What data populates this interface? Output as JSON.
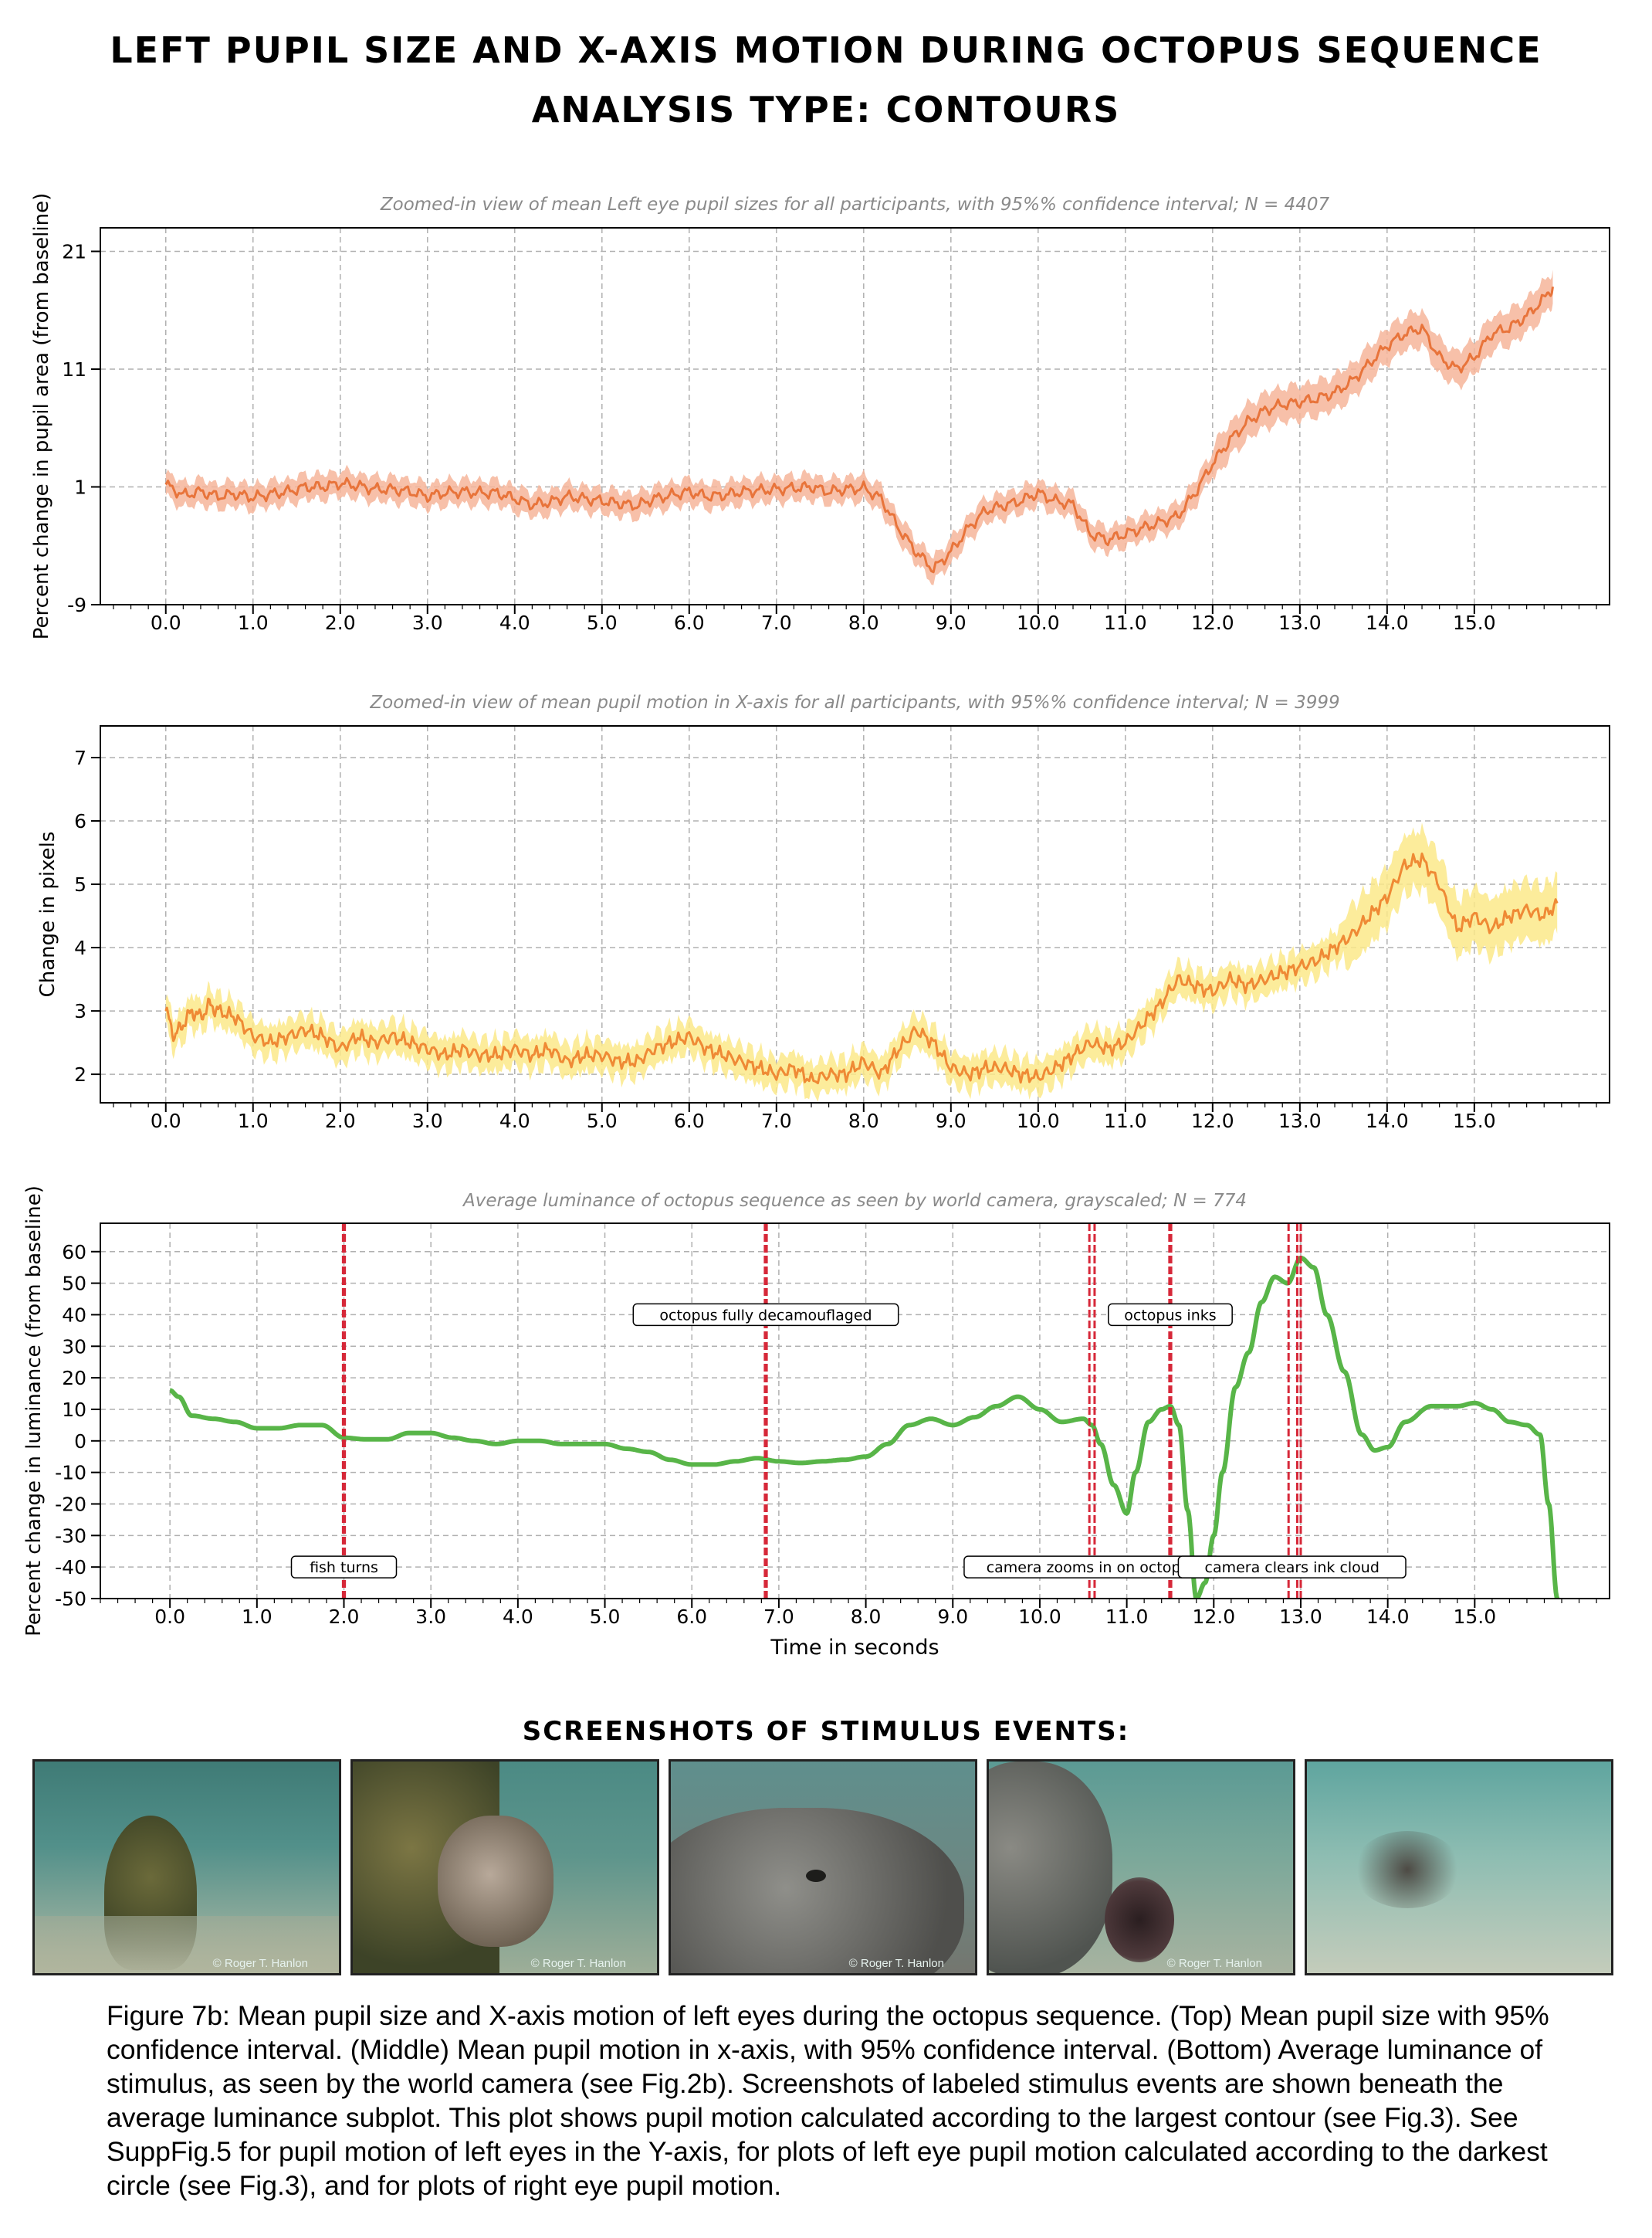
{
  "header": {
    "title": "LEFT PUPIL SIZE AND X-AXIS MOTION DURING OCTOPUS SEQUENCE",
    "subtitle": "ANALYSIS TYPE: CONTOURS"
  },
  "colors": {
    "pupil_line": "#e8743b",
    "pupil_band": "#f6b59a",
    "motion_line": "#ef8a35",
    "motion_band": "#fbe98a",
    "luminance_line": "#58b548",
    "event_line": "#d62839",
    "grid": "#b0b0b0"
  },
  "chart_data": [
    {
      "type": "line",
      "title": "Zoomed-in view of mean Left eye pupil sizes for all participants, with 95%% confidence interval; N = 4407",
      "xlabel": "",
      "ylabel": "Percent change in pupil area (from baseline)",
      "xlim": [
        -0.75,
        16.55
      ],
      "ylim": [
        -9,
        23
      ],
      "xticks": [
        "0.0",
        "1.0",
        "2.0",
        "3.0",
        "4.0",
        "5.0",
        "6.0",
        "7.0",
        "8.0",
        "9.0",
        "10.0",
        "11.0",
        "12.0",
        "13.0",
        "14.0",
        "15.0"
      ],
      "yticks": [
        "-9",
        "1",
        "11",
        "21"
      ],
      "grid": true,
      "series": [
        {
          "x": [
            0,
            0.2,
            0.4,
            0.6,
            0.8,
            1.0,
            1.2,
            1.4,
            1.6,
            1.8,
            2.0,
            2.2,
            2.4,
            2.6,
            2.8,
            3.0,
            3.2,
            3.4,
            3.6,
            3.8,
            4.0,
            4.2,
            4.4,
            4.6,
            4.8,
            5.0,
            5.2,
            5.4,
            5.6,
            5.8,
            6.0,
            6.2,
            6.4,
            6.6,
            6.8,
            7.0,
            7.2,
            7.4,
            7.6,
            7.8,
            8.0,
            8.2,
            8.4,
            8.6,
            8.8,
            9.0,
            9.2,
            9.4,
            9.6,
            9.8,
            10.0,
            10.2,
            10.4,
            10.6,
            10.8,
            11.0,
            11.2,
            11.4,
            11.6,
            11.8,
            12.0,
            12.2,
            12.4,
            12.6,
            12.8,
            13.0,
            13.2,
            13.4,
            13.6,
            13.8,
            14.0,
            14.2,
            14.4,
            14.6,
            14.8,
            15.0,
            15.2,
            15.4,
            15.6,
            15.8,
            15.9
          ],
          "values": [
            1.2,
            0.3,
            0.6,
            0.2,
            0.4,
            0.1,
            0.4,
            0.6,
            1.0,
            1.0,
            1.3,
            1.1,
            0.8,
            0.8,
            0.6,
            0.2,
            0.5,
            0.6,
            0.5,
            0.5,
            0.0,
            -0.5,
            -0.3,
            0.2,
            0.0,
            -0.2,
            -0.4,
            -0.6,
            0.0,
            0.3,
            0.6,
            0.2,
            0.3,
            0.6,
            0.7,
            0.8,
            0.9,
            1.0,
            0.6,
            0.8,
            0.9,
            0.0,
            -2.5,
            -4.5,
            -6.0,
            -4.5,
            -2.5,
            -1.0,
            -0.6,
            -0.2,
            0.5,
            -0.2,
            -0.5,
            -3.0,
            -3.5,
            -3.0,
            -2.5,
            -2.0,
            -1.5,
            0.5,
            3.0,
            5.0,
            6.5,
            7.5,
            8.0,
            8.2,
            8.5,
            9.0,
            10.0,
            11.5,
            13.0,
            14.0,
            14.5,
            12.0,
            11.0,
            12.0,
            14.0,
            14.5,
            15.5,
            17.0,
            18.0
          ],
          "ci_halfwidth": 0.9
        }
      ]
    },
    {
      "type": "line",
      "title": "Zoomed-in view of mean pupil motion in X-axis for all participants, with 95%% confidence interval; N = 3999",
      "xlabel": "",
      "ylabel": "Change in pixels",
      "xlim": [
        -0.75,
        16.55
      ],
      "ylim": [
        1.55,
        7.5
      ],
      "xticks": [
        "0.0",
        "1.0",
        "2.0",
        "3.0",
        "4.0",
        "5.0",
        "6.0",
        "7.0",
        "8.0",
        "9.0",
        "10.0",
        "11.0",
        "12.0",
        "13.0",
        "14.0",
        "15.0"
      ],
      "yticks": [
        "2",
        "3",
        "4",
        "5",
        "6",
        "7"
      ],
      "grid": true,
      "series": [
        {
          "x": [
            0,
            0.1,
            0.2,
            0.3,
            0.4,
            0.5,
            0.6,
            0.8,
            1.0,
            1.2,
            1.4,
            1.6,
            1.8,
            2.0,
            2.2,
            2.4,
            2.6,
            2.8,
            3.0,
            3.2,
            3.4,
            3.6,
            3.8,
            4.0,
            4.2,
            4.4,
            4.6,
            4.8,
            5.0,
            5.2,
            5.4,
            5.6,
            5.8,
            6.0,
            6.2,
            6.4,
            6.6,
            6.8,
            7.0,
            7.2,
            7.4,
            7.6,
            7.8,
            8.0,
            8.2,
            8.4,
            8.6,
            8.8,
            9.0,
            9.2,
            9.4,
            9.6,
            9.8,
            10.0,
            10.2,
            10.4,
            10.6,
            10.8,
            11.0,
            11.2,
            11.4,
            11.6,
            11.8,
            12.0,
            12.2,
            12.4,
            12.6,
            12.8,
            13.0,
            13.2,
            13.4,
            13.6,
            13.8,
            14.0,
            14.2,
            14.4,
            14.6,
            14.8,
            15.0,
            15.2,
            15.4,
            15.6,
            15.8,
            15.95
          ],
          "values": [
            3.0,
            2.6,
            2.8,
            3.0,
            2.9,
            3.1,
            3.0,
            2.9,
            2.6,
            2.5,
            2.6,
            2.7,
            2.6,
            2.4,
            2.6,
            2.5,
            2.6,
            2.5,
            2.4,
            2.3,
            2.4,
            2.3,
            2.3,
            2.4,
            2.3,
            2.4,
            2.2,
            2.3,
            2.3,
            2.2,
            2.2,
            2.4,
            2.5,
            2.6,
            2.4,
            2.3,
            2.2,
            2.1,
            2.0,
            2.1,
            1.9,
            2.0,
            2.0,
            2.2,
            2.0,
            2.4,
            2.7,
            2.5,
            2.1,
            2.0,
            2.1,
            2.1,
            2.0,
            1.95,
            2.1,
            2.3,
            2.5,
            2.4,
            2.5,
            2.8,
            3.1,
            3.5,
            3.4,
            3.3,
            3.5,
            3.4,
            3.5,
            3.6,
            3.7,
            3.8,
            4.0,
            4.2,
            4.5,
            4.8,
            5.3,
            5.4,
            5.0,
            4.3,
            4.5,
            4.3,
            4.5,
            4.6,
            4.5,
            4.7
          ]
        }
      ]
    },
    {
      "type": "line",
      "title": "Average luminance of octopus sequence as seen by world camera, grayscaled; N = 774",
      "xlabel": "Time in seconds",
      "ylabel": "Percent change in luminance (from baseline)",
      "xlim": [
        -0.8,
        16.55
      ],
      "ylim": [
        -50,
        69
      ],
      "xticks": [
        "0.0",
        "1.0",
        "2.0",
        "3.0",
        "4.0",
        "5.0",
        "6.0",
        "7.0",
        "8.0",
        "9.0",
        "10.0",
        "11.0",
        "12.0",
        "13.0",
        "14.0",
        "15.0"
      ],
      "yticks": [
        "-50",
        "-40",
        "-30",
        "-20",
        "-10",
        "0",
        "10",
        "20",
        "30",
        "40",
        "50",
        "60"
      ],
      "grid": true,
      "series": [
        {
          "x": [
            0,
            0.1,
            0.25,
            0.5,
            0.75,
            1.0,
            1.25,
            1.5,
            1.75,
            2.0,
            2.25,
            2.5,
            2.75,
            3.0,
            3.25,
            3.5,
            3.75,
            4.0,
            4.25,
            4.5,
            4.75,
            5.0,
            5.25,
            5.5,
            5.75,
            6.0,
            6.25,
            6.5,
            6.75,
            7.0,
            7.25,
            7.5,
            7.75,
            8.0,
            8.25,
            8.5,
            8.75,
            9.0,
            9.25,
            9.5,
            9.75,
            10.0,
            10.25,
            10.5,
            10.6,
            10.7,
            10.85,
            11.0,
            11.1,
            11.25,
            11.4,
            11.5,
            11.6,
            11.7,
            11.8,
            11.9,
            12.0,
            12.1,
            12.25,
            12.4,
            12.55,
            12.7,
            12.85,
            13.0,
            13.15,
            13.3,
            13.5,
            13.7,
            13.85,
            14.0,
            14.2,
            14.5,
            14.8,
            15.0,
            15.2,
            15.4,
            15.6,
            15.75,
            15.85,
            15.95
          ],
          "values": [
            16,
            14,
            8,
            7,
            6,
            4,
            4,
            5,
            5,
            1,
            0.5,
            0.5,
            2.5,
            2.5,
            1,
            0,
            -1,
            0,
            0,
            -1,
            -1,
            -1,
            -2.5,
            -3.5,
            -6,
            -7.5,
            -7.5,
            -6.5,
            -5.5,
            -6.5,
            -7,
            -6.5,
            -6,
            -5,
            -1,
            5,
            7,
            5,
            7.5,
            11,
            14,
            10,
            6,
            7,
            5,
            -1,
            -14,
            -23,
            -10,
            6,
            10,
            11,
            5,
            -22,
            -50,
            -45,
            -30,
            -10,
            17,
            28,
            44,
            52,
            50,
            58,
            55,
            40,
            22,
            2,
            -3,
            -2,
            6,
            11,
            11,
            12,
            10,
            6,
            5,
            2,
            -20,
            -50
          ]
        }
      ],
      "events": [
        {
          "x": 2.0,
          "label": "fish turns",
          "label_y": -40,
          "lines": [
            1.99,
            2.01
          ]
        },
        {
          "x": 6.85,
          "label": "octopus fully decamouflaged",
          "label_y": 40,
          "lines": [
            6.84,
            6.86
          ]
        },
        {
          "x": 10.6,
          "label": "camera zooms in on octopus",
          "label_y": -40,
          "lines": [
            10.57,
            10.63
          ]
        },
        {
          "x": 11.5,
          "label": "octopus inks",
          "label_y": 40,
          "lines": [
            11.49,
            11.51
          ]
        },
        {
          "x": 12.9,
          "label": "camera clears ink cloud",
          "label_y": -40,
          "lines": [
            12.86,
            12.96,
            13.0
          ]
        }
      ]
    }
  ],
  "screenshots": {
    "heading": "SCREENSHOTS OF STIMULUS EVENTS:",
    "items": [
      {
        "credit": "© Roger T. Hanlon"
      },
      {
        "credit": "© Roger T. Hanlon"
      },
      {
        "credit": "© Roger T. Hanlon"
      },
      {
        "credit": "© Roger T. Hanlon"
      },
      {
        "credit": ""
      }
    ]
  },
  "caption": "Figure 7b: Mean pupil size and X-axis motion of left eyes during the octopus sequence. (Top) Mean pupil size with 95% confidence interval. (Middle) Mean pupil motion in x-axis, with 95% confidence interval.  (Bottom) Average luminance of stimulus, as seen by the world camera (see Fig.2b). Screenshots of labeled stimulus events are shown beneath the average luminance subplot. This plot shows pupil motion calculated according to the largest contour (see Fig.3). See SuppFig.5 for pupil motion of left eyes in the Y-axis, for plots of left eye pupil motion calculated according to the darkest circle (see Fig.3), and for plots of right eye pupil motion."
}
